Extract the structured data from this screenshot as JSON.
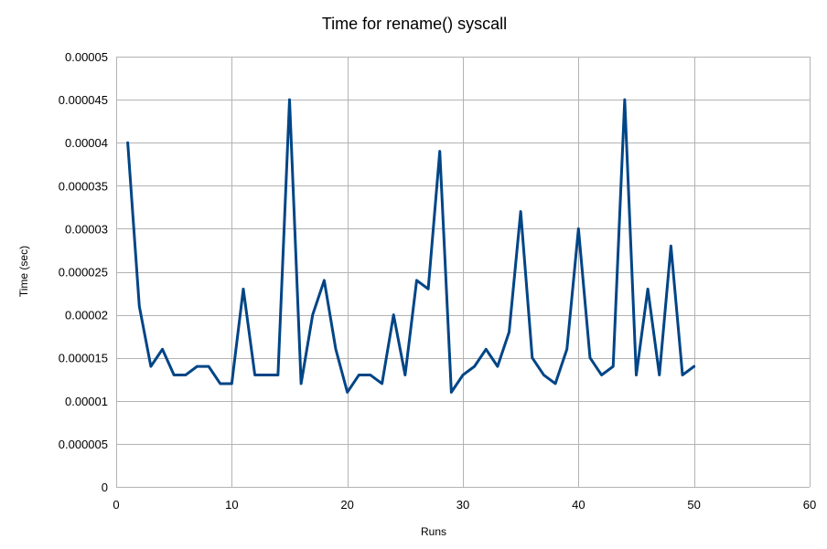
{
  "chart_data": {
    "type": "line",
    "title": "Time for rename() syscall",
    "xlabel": "Runs",
    "ylabel": "Time (sec)",
    "xlim": [
      0,
      60
    ],
    "ylim": [
      0,
      5e-05
    ],
    "xticks": [
      0,
      10,
      20,
      30,
      40,
      50,
      60
    ],
    "xtick_labels": [
      "0",
      "10",
      "20",
      "30",
      "40",
      "50",
      "60"
    ],
    "yticks": [
      0,
      5e-06,
      1e-05,
      1.5e-05,
      2e-05,
      2.5e-05,
      3e-05,
      3.5e-05,
      4e-05,
      4.5e-05,
      5e-05
    ],
    "ytick_labels": [
      "0",
      "0.000005",
      "0.00001",
      "0.000015",
      "0.00002",
      "0.000025",
      "0.00003",
      "0.000035",
      "0.00004",
      "0.000045",
      "0.00005"
    ],
    "grid": true,
    "legend": "none",
    "series_color": "#004586",
    "series": [
      {
        "x": [
          1,
          2,
          3,
          4,
          5,
          6,
          7,
          8,
          9,
          10,
          11,
          12,
          13,
          14,
          15,
          16,
          17,
          18,
          19,
          20,
          21,
          22,
          23,
          24,
          25,
          26,
          27,
          28,
          29,
          30,
          31,
          32,
          33,
          34,
          35,
          36,
          37,
          38,
          39,
          40,
          41,
          42,
          43,
          44,
          45,
          46,
          47,
          48,
          49,
          50
        ],
        "values": [
          4e-05,
          2.1e-05,
          1.4e-05,
          1.6e-05,
          1.3e-05,
          1.3e-05,
          1.4e-05,
          1.4e-05,
          1.2e-05,
          1.2e-05,
          2.3e-05,
          1.3e-05,
          1.3e-05,
          1.3e-05,
          4.5e-05,
          1.2e-05,
          2e-05,
          2.4e-05,
          1.6e-05,
          1.1e-05,
          1.3e-05,
          1.3e-05,
          1.2e-05,
          2e-05,
          1.3e-05,
          2.4e-05,
          2.3e-05,
          3.9e-05,
          1.1e-05,
          1.3e-05,
          1.4e-05,
          1.6e-05,
          1.4e-05,
          1.8e-05,
          3.2e-05,
          1.5e-05,
          1.3e-05,
          1.2e-05,
          1.6e-05,
          3e-05,
          1.5e-05,
          1.3e-05,
          1.4e-05,
          4.5e-05,
          1.3e-05,
          2.3e-05,
          1.3e-05,
          2.8e-05,
          1.3e-05,
          1.4e-05
        ]
      }
    ]
  }
}
